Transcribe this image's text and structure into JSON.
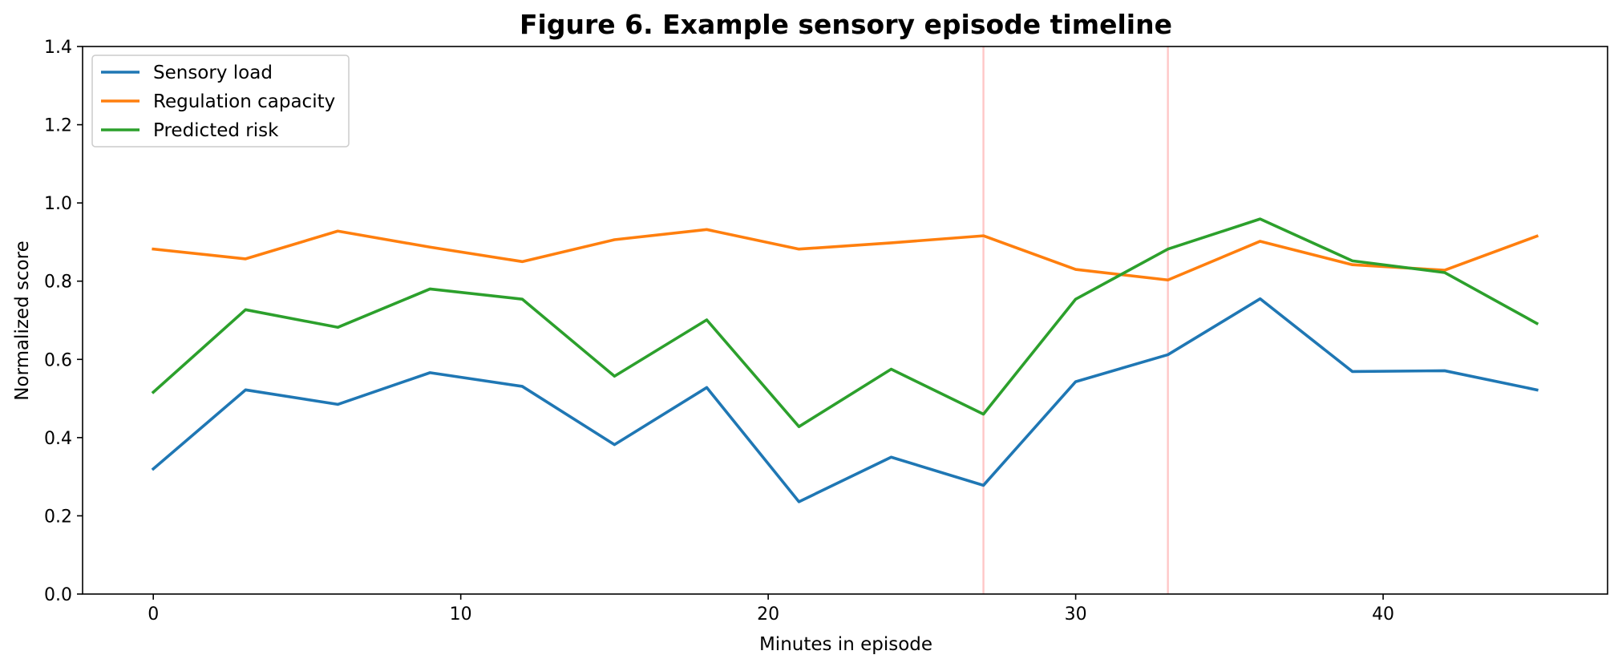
{
  "chart_data": {
    "type": "line",
    "title": "Figure 6. Example sensory episode timeline",
    "xlabel": "Minutes in episode",
    "ylabel": "Normalized score",
    "xlim": [
      -2.3,
      47.3
    ],
    "ylim": [
      0,
      1.4
    ],
    "xticks": [
      0,
      10,
      20,
      30,
      40
    ],
    "yticks": [
      0.0,
      0.2,
      0.4,
      0.6,
      0.8,
      1.0,
      1.2,
      1.4
    ],
    "x": [
      0,
      3,
      6,
      9,
      12,
      15,
      18,
      21,
      24,
      27,
      30,
      33,
      36,
      39,
      42,
      45
    ],
    "series": [
      {
        "name": "Sensory load",
        "color": "#1f77b4",
        "values": [
          0.32,
          0.522,
          0.485,
          0.566,
          0.531,
          0.382,
          0.528,
          0.236,
          0.35,
          0.278,
          0.543,
          0.612,
          0.755,
          0.569,
          0.571,
          0.522
        ]
      },
      {
        "name": "Regulation capacity",
        "color": "#ff7f0e",
        "values": [
          0.882,
          0.857,
          0.928,
          0.887,
          0.85,
          0.906,
          0.932,
          0.882,
          0.898,
          0.916,
          0.83,
          0.803,
          0.902,
          0.842,
          0.828,
          0.915
        ]
      },
      {
        "name": "Predicted risk",
        "color": "#2ca02c",
        "values": [
          0.516,
          0.727,
          0.682,
          0.78,
          0.754,
          0.557,
          0.701,
          0.428,
          0.575,
          0.46,
          0.754,
          0.882,
          0.959,
          0.852,
          0.822,
          0.692
        ]
      }
    ],
    "vlines": [
      {
        "x": 27,
        "color": "#ffc7c7"
      },
      {
        "x": 33,
        "color": "#ffc7c7"
      }
    ],
    "grid": false,
    "legend_position": "upper-left"
  }
}
